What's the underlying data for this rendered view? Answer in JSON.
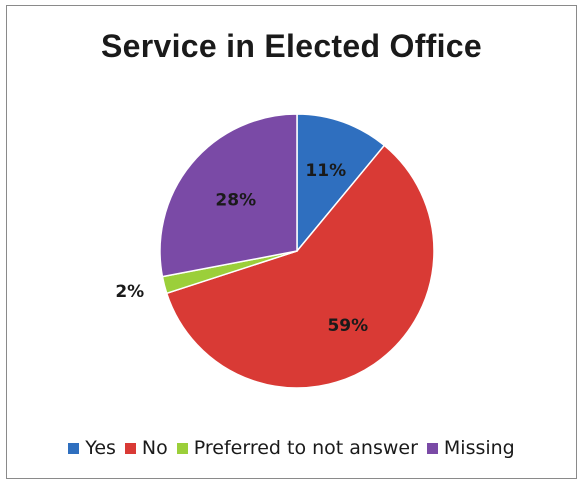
{
  "chart_data": {
    "type": "pie",
    "title": "Service in Elected Office",
    "slices": [
      {
        "label": "Yes",
        "value": 11,
        "display": "11%",
        "color": "#2f6fbf"
      },
      {
        "label": "No",
        "value": 59,
        "display": "59%",
        "color": "#d93a35"
      },
      {
        "label": "Preferred to not answer",
        "value": 2,
        "display": "2%",
        "color": "#9bcf3a"
      },
      {
        "label": "Missing",
        "value": 28,
        "display": "28%",
        "color": "#7a4aa6"
      }
    ],
    "legend_position": "bottom"
  }
}
